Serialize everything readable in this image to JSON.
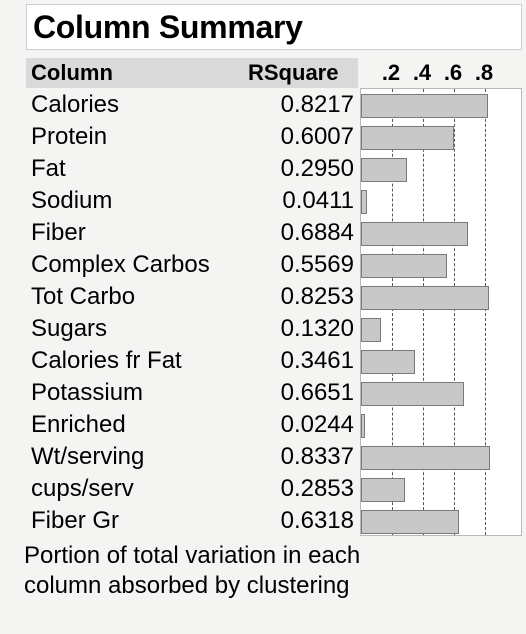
{
  "title": "Column Summary",
  "headers": {
    "column": "Column",
    "rsquare": "RSquare"
  },
  "footnote_lines": [
    "Portion of total variation in each",
    "column absorbed by clustering"
  ],
  "chart_data": {
    "type": "bar",
    "orientation": "horizontal",
    "title": "Column Summary",
    "categories": [
      "Calories",
      "Protein",
      "Fat",
      "Sodium",
      "Fiber",
      "Complex Carbos",
      "Tot Carbo",
      "Sugars",
      "Calories fr Fat",
      "Potassium",
      "Enriched",
      "Wt/serving",
      "cups/serv",
      "Fiber Gr"
    ],
    "values": [
      0.8217,
      0.6007,
      0.295,
      0.0411,
      0.6884,
      0.5569,
      0.8253,
      0.132,
      0.3461,
      0.6651,
      0.0244,
      0.8337,
      0.2853,
      0.6318
    ],
    "value_labels": [
      "0.8217",
      "0.6007",
      "0.2950",
      "0.0411",
      "0.6884",
      "0.5569",
      "0.8253",
      "0.1320",
      "0.3461",
      "0.6651",
      "0.0244",
      "0.8337",
      "0.2853",
      "0.6318"
    ],
    "xlim": [
      0,
      1
    ],
    "ticks": [
      0.2,
      0.4,
      0.6,
      0.8
    ],
    "tick_labels": [
      ".2",
      ".4",
      ".6",
      ".8"
    ],
    "grid": true,
    "bar_color": "#c8c8c8",
    "bar_border_color": "#7a7a7a"
  }
}
